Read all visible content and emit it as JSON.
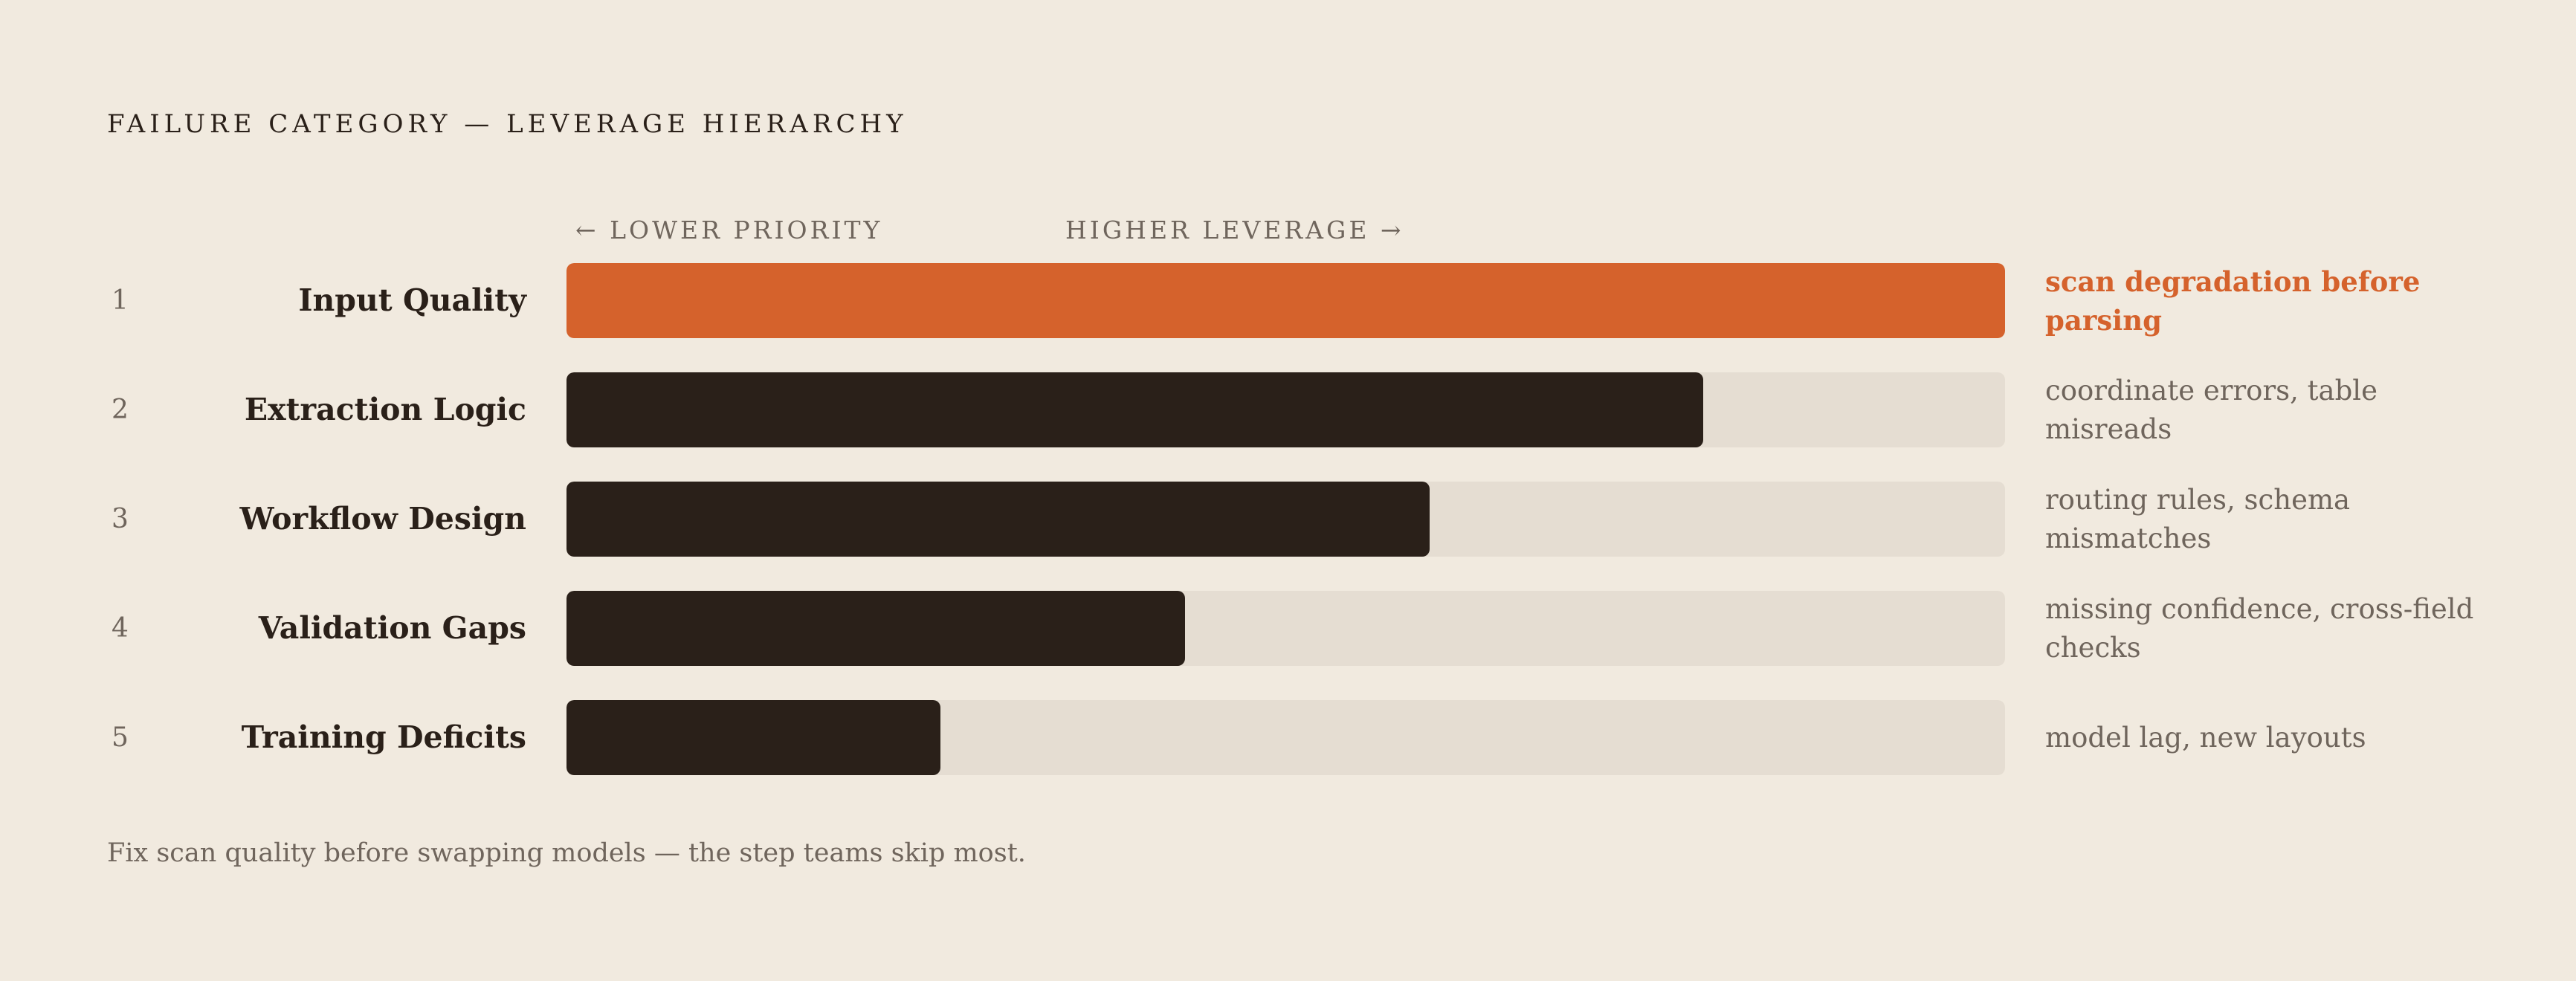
{
  "colors": {
    "background": "#f1eadf",
    "accent": "#d5622c",
    "bar": "#2a2019",
    "track": "#e5ddd2",
    "muted_text": "#6f655c"
  },
  "chart_data": {
    "type": "bar",
    "orientation": "horizontal",
    "title": "FAILURE CATEGORY — LEVERAGE HIERARCHY",
    "axis_hints": [
      "← LOWER PRIORITY",
      "HIGHER LEVERAGE →"
    ],
    "categories": [
      "Input Quality",
      "Extraction Logic",
      "Workflow Design",
      "Validation Gaps",
      "Training Deficits"
    ],
    "ranks": [
      "1",
      "2",
      "3",
      "4",
      "5"
    ],
    "values": [
      100,
      79,
      60,
      43,
      26
    ],
    "value_unit": "percent of max leverage",
    "xlim": [
      0,
      100
    ],
    "highlight_index": 0,
    "annotations": [
      "scan degradation before parsing",
      "coordinate errors, table misreads",
      "routing rules, schema mismatches",
      "missing confidence, cross-field checks",
      "model lag, new layouts"
    ],
    "grid": false,
    "legend": "none"
  },
  "footer": "Fix scan quality before swapping models — the step teams skip most."
}
